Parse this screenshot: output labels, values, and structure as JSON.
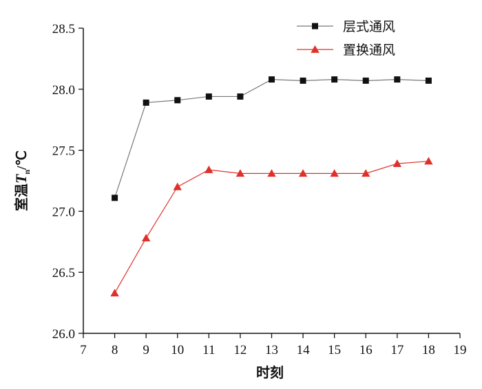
{
  "chart_data": {
    "type": "line",
    "xlabel": "时刻",
    "ylabel": {
      "prefix": "室温",
      "symbol": "T",
      "subscript": "n",
      "unit": "/℃"
    },
    "xlim": [
      7,
      19
    ],
    "ylim": [
      26.0,
      28.5
    ],
    "x_ticks": [
      "7",
      "8",
      "9",
      "10",
      "11",
      "12",
      "13",
      "14",
      "15",
      "16",
      "17",
      "18",
      "19"
    ],
    "y_ticks": [
      "26.0",
      "26.5",
      "27.0",
      "27.5",
      "28.0",
      "28.5"
    ],
    "grid": false,
    "legend_position": "top-right",
    "series": [
      {
        "name": "层式通风",
        "marker": "square",
        "line_color": "#777777",
        "marker_color": "#111111",
        "x": [
          8,
          9,
          10,
          11,
          12,
          13,
          14,
          15,
          16,
          17,
          18
        ],
        "y": [
          27.11,
          27.89,
          27.91,
          27.94,
          27.94,
          28.08,
          28.07,
          28.08,
          28.07,
          28.08,
          28.07
        ]
      },
      {
        "name": "置换通风",
        "marker": "triangle",
        "line_color": "#e0302a",
        "marker_color": "#e0302a",
        "x": [
          8,
          9,
          10,
          11,
          12,
          13,
          14,
          15,
          16,
          17,
          18
        ],
        "y": [
          26.33,
          26.78,
          27.2,
          27.34,
          27.31,
          27.31,
          27.31,
          27.31,
          27.31,
          27.39,
          27.41
        ]
      }
    ]
  }
}
